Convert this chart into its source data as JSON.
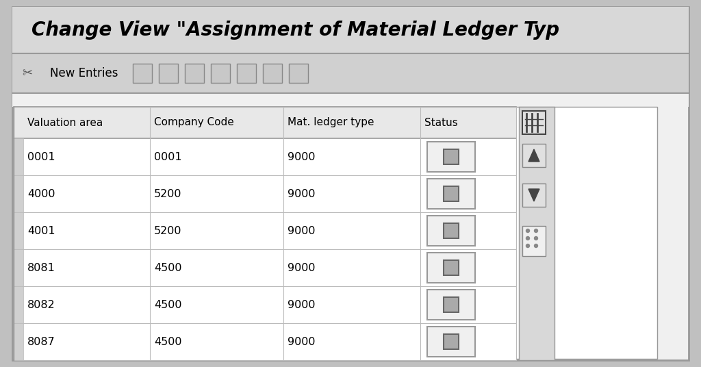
{
  "title": "Change View \"Assignment of Material Ledger Typ",
  "title_fontsize": 20,
  "toolbar_text": "New Entries",
  "columns": [
    "Valuation area",
    "Company Code",
    "Mat. ledger type",
    "Status"
  ],
  "rows": [
    [
      "0001",
      "0001",
      "9000"
    ],
    [
      "4000",
      "5200",
      "9000"
    ],
    [
      "4001",
      "5200",
      "9000"
    ],
    [
      "8081",
      "4500",
      "9000"
    ],
    [
      "8082",
      "4500",
      "9000"
    ],
    [
      "8087",
      "4500",
      "9000"
    ]
  ],
  "outer_bg": "#c0c0c0",
  "panel_bg": "#f0f0f0",
  "title_bg": "#d8d8d8",
  "toolbar_bg": "#d0d0d0",
  "table_bg": "#ffffff",
  "header_bg": "#e8e8e8",
  "right_panel_bg": "#d8d8d8",
  "border_dark": "#555555",
  "border_med": "#999999",
  "border_light": "#bbbbbb",
  "text_color": "#000000",
  "checkbox_outer_bg": "#f0f0f0",
  "checkbox_inner_bg": "#aaaaaa",
  "col_icon_bg": "#e0e0e0",
  "scroll_btn_bg": "#e0e0e0",
  "resize_btn_bg": "#f0f0f0"
}
